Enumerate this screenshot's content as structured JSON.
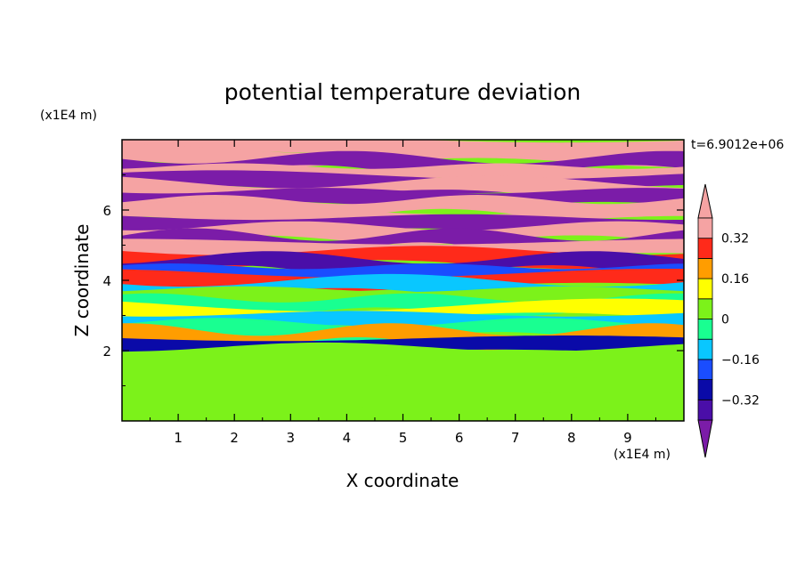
{
  "chart_data": {
    "type": "heatmap",
    "title": "potential temperature deviation",
    "xlabel": "X coordinate",
    "ylabel": "Z coordinate",
    "x_unit": "(x1E4 m)",
    "y_unit": "(x1E4 m)",
    "time_label": "t=6.9012e+06",
    "xlim": [
      0,
      10
    ],
    "ylim": [
      0,
      8
    ],
    "x_ticks": [
      1,
      2,
      3,
      4,
      5,
      6,
      7,
      8,
      9
    ],
    "y_ticks": [
      2,
      4,
      6
    ],
    "colorbar": {
      "levels": [
        -0.4,
        -0.32,
        -0.24,
        -0.16,
        -0.08,
        0,
        0.08,
        0.16,
        0.24,
        0.32,
        0.4
      ],
      "tick_labels": [
        "0.32",
        "0.16",
        "0",
        "−0.16",
        "−0.32"
      ],
      "tick_values": [
        0.32,
        0.16,
        0,
        -0.16,
        -0.32
      ],
      "colors": [
        "#7b1ca8",
        "#4a0ea8",
        "#0a0aa8",
        "#1a4dff",
        "#09c7ff",
        "#19ff91",
        "#7cf21a",
        "#ffff00",
        "#ff9d00",
        "#ff2a1a",
        "#f5a3a3"
      ],
      "extend": "both"
    },
    "bands": [
      {
        "z": 7.8,
        "v": 0.42
      },
      {
        "z": 7.55,
        "v": 0.42
      },
      {
        "z": 7.3,
        "v": -0.45
      },
      {
        "z": 7.05,
        "v": 0.42
      },
      {
        "z": 6.8,
        "v": -0.45
      },
      {
        "z": 6.6,
        "v": 0.42
      },
      {
        "z": 6.35,
        "v": -0.45
      },
      {
        "z": 6.1,
        "v": 0.42
      },
      {
        "z": 5.85,
        "v": 0.42
      },
      {
        "z": 5.6,
        "v": -0.45
      },
      {
        "z": 5.35,
        "v": 0.42
      },
      {
        "z": 5.1,
        "v": -0.45
      },
      {
        "z": 4.9,
        "v": 0.42
      },
      {
        "z": 4.65,
        "v": 0.25
      },
      {
        "z": 4.45,
        "v": -0.35
      },
      {
        "z": 4.2,
        "v": -0.18
      },
      {
        "z": 4.0,
        "v": 0.3
      },
      {
        "z": 3.8,
        "v": -0.12
      },
      {
        "z": 3.55,
        "v": 0.05
      },
      {
        "z": 3.3,
        "v": -0.05
      },
      {
        "z": 3.1,
        "v": 0.1
      },
      {
        "z": 2.85,
        "v": -0.1
      },
      {
        "z": 2.6,
        "v": -0.06
      },
      {
        "z": 2.4,
        "v": 0.2
      },
      {
        "z": 2.15,
        "v": -0.3
      },
      {
        "z": 1.9,
        "v": 0.02
      },
      {
        "z": 1.5,
        "v": 0.06
      },
      {
        "z": 1.0,
        "v": 0.02
      },
      {
        "z": 0.5,
        "v": 0.06
      },
      {
        "z": 0.1,
        "v": 0.04
      }
    ]
  }
}
